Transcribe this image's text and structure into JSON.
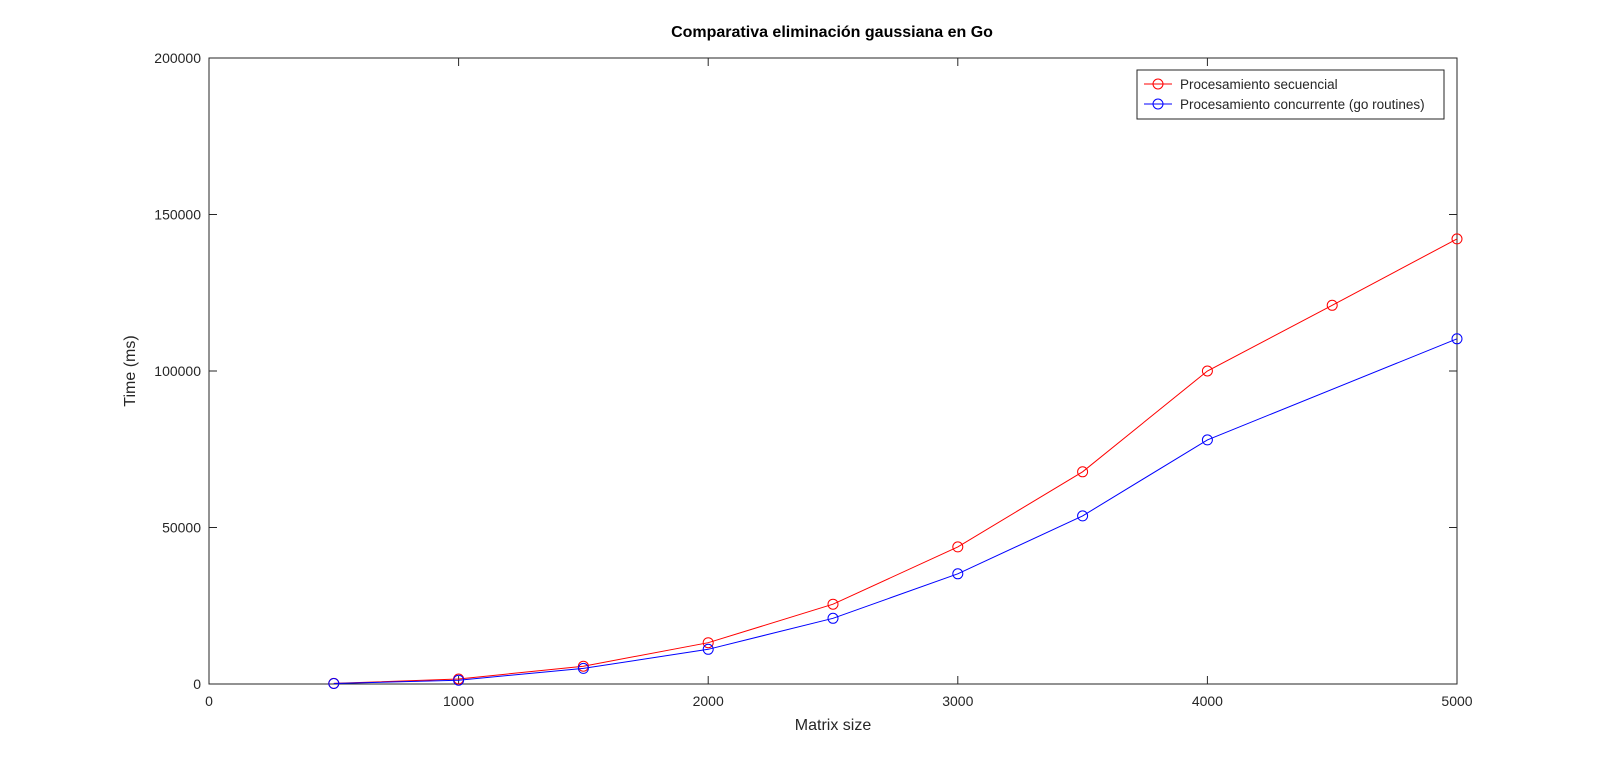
{
  "chart_data": {
    "type": "line",
    "title": "Comparativa eliminación gaussiana en Go",
    "xlabel": "Matrix size",
    "ylabel": "Time (ms)",
    "xlim": [
      0,
      5000
    ],
    "ylim": [
      0,
      200000
    ],
    "xticks": [
      0,
      1000,
      2000,
      3000,
      4000,
      5000
    ],
    "yticks": [
      0,
      50000,
      100000,
      150000,
      200000
    ],
    "grid": false,
    "legend_position": "top-right",
    "x": [
      500,
      1000,
      1500,
      2000,
      2500,
      3000,
      3500,
      4000,
      4500,
      5000
    ],
    "series": [
      {
        "name": "Procesamiento secuencial",
        "color": "#ff0000",
        "marker": "circle",
        "values": [
          200,
          1600,
          5700,
          13200,
          25500,
          43800,
          67800,
          100000,
          121000,
          142200
        ]
      },
      {
        "name": "Procesamiento concurrente (go routines)",
        "color": "#0000ff",
        "marker": "circle",
        "values": [
          150,
          1200,
          5000,
          11100,
          21000,
          35200,
          53700,
          78000,
          null,
          110300
        ]
      }
    ]
  }
}
